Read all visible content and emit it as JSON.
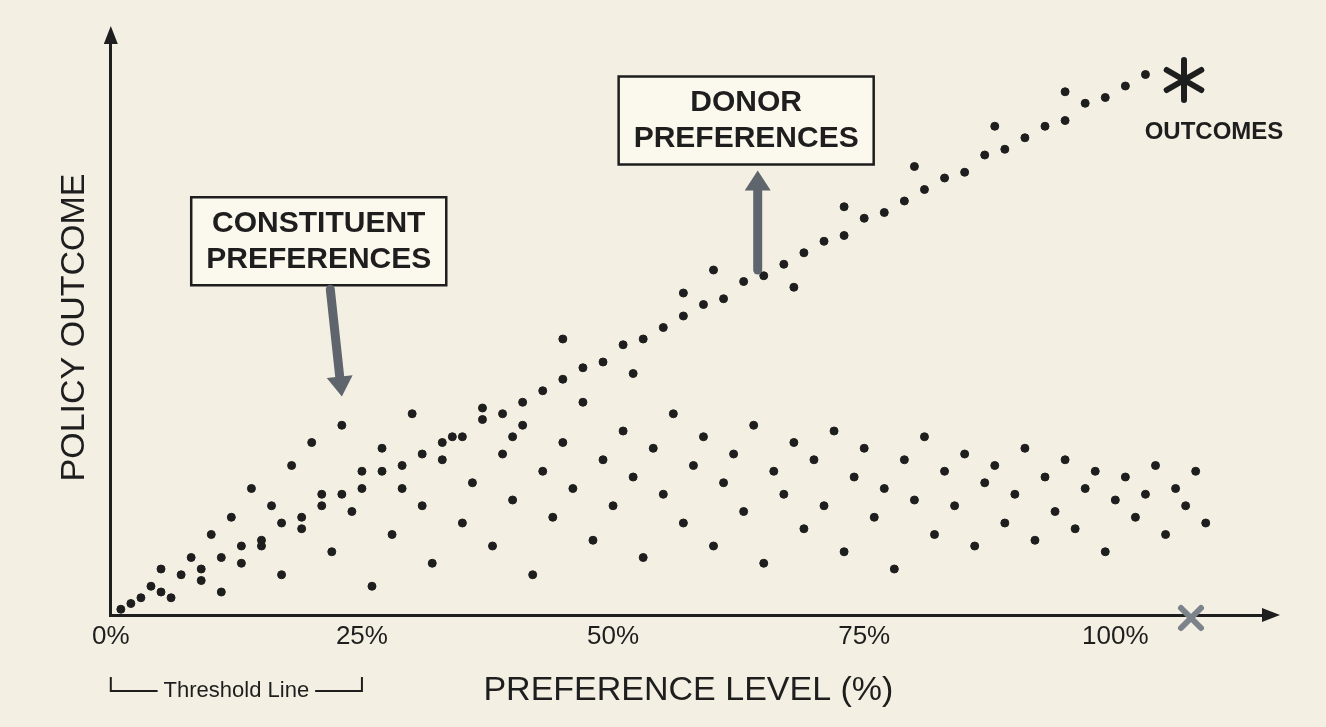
{
  "chart_data": {
    "type": "scatter",
    "x_label": "PREFERENCE LEVEL (%)",
    "y_label": "POLICY OUTCOME",
    "annotations": [
      "OUTCOMES",
      "Threshold Line"
    ],
    "xlim": [
      0,
      115
    ],
    "xticks": [
      {
        "value": 0,
        "label": "0%"
      },
      {
        "value": 25,
        "label": "25%"
      },
      {
        "value": 50,
        "label": "50%"
      },
      {
        "value": 75,
        "label": "75%"
      },
      {
        "value": 100,
        "label": "100%"
      }
    ],
    "ylim": [
      0,
      100
    ],
    "tick_labels": "x",
    "grid": false,
    "marker": "circle",
    "series": [
      {
        "name": "CONSTITUENT PREFERENCES",
        "color": "#1e1e1e",
        "x": [
          2,
          4,
          5,
          6,
          8,
          9,
          10,
          11,
          12,
          13,
          14,
          15,
          16,
          17,
          18,
          19,
          20,
          21,
          22,
          23,
          24,
          25,
          26,
          27,
          28,
          29,
          30,
          31,
          32,
          33,
          34,
          35,
          36,
          37,
          38,
          39,
          40,
          41,
          42,
          43,
          44,
          45,
          46,
          47,
          48,
          49,
          50,
          51,
          52,
          53,
          54,
          55,
          56,
          57,
          58,
          59,
          60,
          61,
          62,
          63,
          64,
          65,
          66,
          67,
          68,
          69,
          70,
          71,
          72,
          73,
          74,
          75,
          76,
          77,
          78,
          79,
          80,
          81,
          82,
          83,
          84,
          85,
          86,
          87,
          88,
          89,
          90,
          91,
          92,
          93,
          94,
          95,
          96,
          97,
          98,
          99,
          100,
          101,
          102,
          103,
          104,
          105,
          106,
          107,
          108,
          109
        ],
        "values": [
          2,
          5,
          8,
          3,
          10,
          6,
          14,
          4,
          17,
          9,
          22,
          12,
          19,
          7,
          26,
          15,
          30,
          21,
          11,
          33,
          18,
          25,
          5,
          29,
          14,
          22,
          35,
          19,
          9,
          27,
          31,
          16,
          23,
          36,
          12,
          28,
          20,
          33,
          7,
          25,
          17,
          30,
          22,
          37,
          13,
          27,
          19,
          32,
          24,
          10,
          29,
          21,
          35,
          16,
          26,
          31,
          12,
          23,
          28,
          18,
          33,
          9,
          25,
          21,
          30,
          15,
          27,
          19,
          32,
          11,
          24,
          29,
          17,
          22,
          8,
          27,
          20,
          31,
          14,
          25,
          19,
          28,
          12,
          23,
          26,
          16,
          21,
          29,
          13,
          24,
          18,
          27,
          15,
          22,
          25,
          11,
          20,
          24,
          17,
          21,
          26,
          14,
          22,
          19,
          25,
          16
        ]
      },
      {
        "name": "DONOR PREFERENCES",
        "color": "#1e1e1e",
        "x": [
          1,
          3,
          5,
          7,
          9,
          11,
          13,
          15,
          17,
          19,
          21,
          23,
          25,
          27,
          29,
          31,
          33,
          35,
          37,
          39,
          41,
          43,
          45,
          47,
          49,
          51,
          53,
          55,
          57,
          59,
          61,
          63,
          65,
          67,
          69,
          71,
          73,
          75,
          77,
          79,
          81,
          83,
          85,
          87,
          89,
          91,
          93,
          95,
          97,
          99,
          101,
          103,
          45,
          52,
          60,
          68,
          80,
          88,
          40,
          57,
          73,
          95
        ],
        "values": [
          1,
          3,
          4,
          7,
          8,
          10,
          12,
          13,
          16,
          17,
          19,
          21,
          22,
          25,
          26,
          28,
          30,
          31,
          34,
          35,
          37,
          39,
          41,
          43,
          44,
          47,
          48,
          50,
          52,
          54,
          55,
          58,
          59,
          61,
          63,
          65,
          66,
          69,
          70,
          72,
          74,
          76,
          77,
          80,
          81,
          83,
          85,
          86,
          89,
          90,
          92,
          94,
          48,
          42,
          60,
          57,
          78,
          85,
          31,
          56,
          71,
          91
        ]
      }
    ]
  }
}
